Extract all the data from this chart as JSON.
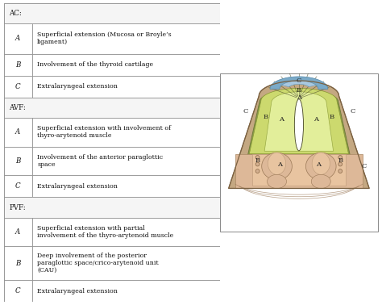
{
  "table": {
    "sections": [
      {
        "header": "AC:",
        "rows": [
          {
            "label": "A",
            "text": "Superficial extension (Mucosa or Broyle’s\nligament)"
          },
          {
            "label": "B",
            "text": "Involvement of the thyroid cartilage"
          },
          {
            "label": "C",
            "text": "Extralaryngeal extension"
          }
        ]
      },
      {
        "header": "AVF:",
        "rows": [
          {
            "label": "A",
            "text": "Superficial extension with involvement of\nthyro-arytenoid muscle"
          },
          {
            "label": "B",
            "text": "Involvement of the anterior paraglottic\nspace"
          },
          {
            "label": "C",
            "text": "Extralaryngeal extension"
          }
        ]
      },
      {
        "header": "PVF:",
        "rows": [
          {
            "label": "A",
            "text": "Superficial extension with partial\ninvolvement of the thyro-arytenoid muscle"
          },
          {
            "label": "B",
            "text": "Deep involvement of the posterior\nparaglottic space/crico-arytenoid unit\n(CAU)"
          },
          {
            "label": "C",
            "text": "Extralaryngeal extension"
          }
        ]
      }
    ]
  },
  "colors": {
    "background": "#ffffff",
    "outer_tan": "#c4a882",
    "olive_green": "#8b9a52",
    "yellow_green": "#ccd96e",
    "light_yellow_green": "#e2ee9a",
    "salmon": "#d4a882",
    "light_salmon": "#e8c4a0",
    "peach": "#ddb898",
    "blue_arc": "#7aaac8",
    "light_blue": "#a8c8e0",
    "inner_brown": "#c8a070"
  }
}
